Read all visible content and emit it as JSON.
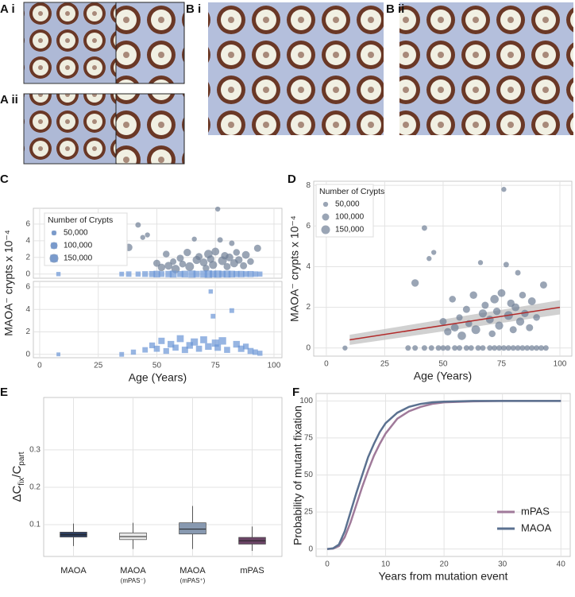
{
  "panel_labels": [
    "A i",
    "A ii",
    "B i",
    "B ii",
    "C",
    "D",
    "E",
    "F"
  ],
  "chart_data": [
    {
      "type": "scatter",
      "ylabel": "MAOA⁻ crypts x 10⁻⁴",
      "xlim": [
        -2.7,
        103.4
      ],
      "xticks": [
        0,
        25,
        50,
        75,
        100
      ],
      "show_xtick_labels": false,
      "ylim": [
        -0.5,
        7.9
      ],
      "yticks": [
        0,
        2,
        4,
        6
      ],
      "grid": true,
      "size_legend": {
        "title": "Number of Crypts",
        "entries": [
          {
            "value": 50000,
            "label": "50,000"
          },
          {
            "value": 100000,
            "label": "100,000"
          },
          {
            "value": 150000,
            "label": "150,000"
          }
        ]
      },
      "series": [
        {
          "color": "#6f7f96",
          "marker": "circle",
          "x": [
            38,
            42,
            44,
            46,
            50,
            52,
            54,
            55,
            57,
            58,
            60,
            61,
            63,
            64,
            66,
            67,
            68,
            70,
            71,
            72,
            73,
            74,
            75,
            76,
            77,
            78,
            79,
            80,
            81,
            82,
            83,
            84,
            85,
            87,
            88,
            90,
            93
          ],
          "y": [
            3.2,
            5.9,
            4.4,
            4.7,
            1.3,
            0.8,
            2.4,
            1.0,
            1.5,
            0.6,
            1.9,
            1.2,
            2.6,
            0.9,
            4.2,
            1.7,
            2.1,
            1.4,
            0.7,
            2.4,
            1.8,
            1.1,
            2.7,
            7.8,
            4.1,
            1.6,
            2.2,
            0.9,
            2.0,
            3.7,
            1.3,
            2.6,
            1.7,
            1.0,
            2.3,
            1.5,
            3.1
          ],
          "size": [
            110000,
            60000,
            50000,
            50000,
            100000,
            110000,
            90000,
            120000,
            80000,
            140000,
            100000,
            90000,
            110000,
            150000,
            50000,
            130000,
            100000,
            120000,
            90000,
            140000,
            110000,
            130000,
            120000,
            50000,
            60000,
            150000,
            110000,
            100000,
            120000,
            60000,
            130000,
            90000,
            110000,
            100000,
            120000,
            90000,
            100000
          ]
        },
        {
          "color": "#6b96d6",
          "marker": "square",
          "x": [
            8,
            35,
            38,
            42,
            45,
            48,
            50,
            52,
            55,
            57,
            60,
            62,
            65,
            67,
            70,
            72,
            74,
            76,
            78,
            80,
            82,
            84,
            86,
            88,
            90,
            92,
            94
          ],
          "y": [
            0,
            0,
            0,
            0,
            0,
            0,
            0,
            0,
            0,
            0,
            0,
            0,
            0,
            0,
            0,
            0,
            0,
            0,
            0,
            0,
            0,
            0,
            0,
            0,
            0,
            0,
            0
          ],
          "size": [
            50000,
            60000,
            80000,
            70000,
            90000,
            100000,
            120000,
            90000,
            110000,
            130000,
            100000,
            120000,
            140000,
            110000,
            130000,
            150000,
            120000,
            140000,
            110000,
            130000,
            120000,
            100000,
            110000,
            90000,
            100000,
            80000,
            70000
          ]
        }
      ]
    },
    {
      "type": "scatter",
      "xlabel": "Age (Years)",
      "xlim": [
        -2.7,
        103.4
      ],
      "xticks": [
        0,
        25,
        50,
        75,
        100
      ],
      "ylim": [
        -0.3,
        6.5
      ],
      "yticks": [
        0,
        2,
        4,
        6
      ],
      "grid": true,
      "series": [
        {
          "color": "#6b96d6",
          "marker": "square",
          "x": [
            8,
            35,
            40,
            45,
            48,
            50,
            52,
            54,
            56,
            58,
            60,
            62,
            64,
            66,
            68,
            70,
            72,
            73,
            74,
            75,
            76,
            78,
            80,
            82,
            84,
            86,
            88,
            90,
            92,
            94
          ],
          "y": [
            0,
            0,
            0.2,
            0.4,
            0.8,
            0.5,
            1.2,
            0.3,
            0.9,
            0.6,
            1.4,
            0.4,
            0.8,
            1.1,
            0.5,
            1.3,
            0.7,
            5.6,
            3.4,
            1.0,
            0.6,
            1.2,
            0.4,
            3.9,
            0.9,
            0.5,
            0.7,
            0.3,
            0.2,
            0.1
          ],
          "size": [
            40000,
            60000,
            70000,
            80000,
            90000,
            100000,
            110000,
            90000,
            120000,
            100000,
            130000,
            110000,
            120000,
            140000,
            100000,
            130000,
            120000,
            50000,
            60000,
            140000,
            110000,
            150000,
            100000,
            60000,
            120000,
            110000,
            90000,
            100000,
            80000,
            70000
          ]
        }
      ]
    },
    {
      "type": "scatter",
      "xlabel": "Age (Years)",
      "ylabel": "MAOA⁻ crypts x 10⁻⁴",
      "xlim": [
        -5.4,
        105.1
      ],
      "xticks": [
        0,
        25,
        50,
        75,
        100
      ],
      "ylim": [
        -0.4,
        8.2
      ],
      "yticks": [
        0,
        2,
        4,
        6,
        8
      ],
      "grid": true,
      "size_legend": {
        "title": "Number of Crypts",
        "entries": [
          {
            "value": 50000,
            "label": "50,000"
          },
          {
            "value": 100000,
            "label": "100,000"
          },
          {
            "value": 150000,
            "label": "150,000"
          }
        ]
      },
      "fit": {
        "color": "#b22a2a",
        "band_color": "#bdbdbd",
        "x": [
          10,
          100
        ],
        "y": [
          0.4,
          2.0
        ],
        "lower": [
          0.15,
          1.65
        ],
        "upper": [
          0.65,
          2.35
        ]
      },
      "series": [
        {
          "color": "#6f7f96",
          "marker": "circle",
          "x": [
            38,
            42,
            44,
            46,
            50,
            52,
            54,
            55,
            57,
            58,
            60,
            61,
            63,
            64,
            66,
            67,
            68,
            70,
            71,
            72,
            73,
            74,
            75,
            76,
            77,
            78,
            79,
            80,
            81,
            82,
            83,
            84,
            85,
            87,
            88,
            90,
            93,
            8,
            35,
            38,
            42,
            45,
            48,
            50,
            52,
            55,
            57,
            60,
            62,
            65,
            67,
            70,
            72,
            74,
            76,
            78,
            80,
            82,
            84,
            86,
            88,
            90,
            92,
            94
          ],
          "y": [
            3.2,
            5.9,
            4.4,
            4.7,
            1.3,
            0.8,
            2.4,
            1.0,
            1.5,
            0.6,
            1.9,
            1.2,
            2.6,
            0.9,
            4.2,
            1.7,
            2.1,
            1.4,
            0.7,
            2.4,
            1.8,
            1.1,
            2.7,
            7.8,
            4.1,
            1.6,
            2.2,
            0.9,
            2.0,
            3.7,
            1.3,
            2.6,
            1.7,
            1.0,
            2.3,
            1.5,
            3.1,
            0,
            0,
            0,
            0,
            0,
            0,
            0,
            0,
            0,
            0,
            0,
            0,
            0,
            0,
            0,
            0,
            0,
            0,
            0,
            0,
            0,
            0,
            0,
            0,
            0,
            0,
            0
          ],
          "size": [
            110000,
            60000,
            50000,
            50000,
            100000,
            110000,
            90000,
            120000,
            80000,
            140000,
            100000,
            90000,
            110000,
            150000,
            50000,
            130000,
            100000,
            120000,
            90000,
            140000,
            110000,
            130000,
            120000,
            50000,
            60000,
            150000,
            110000,
            100000,
            120000,
            60000,
            130000,
            90000,
            110000,
            100000,
            120000,
            90000,
            100000,
            50000,
            60000,
            60000,
            60000,
            60000,
            60000,
            60000,
            60000,
            60000,
            60000,
            60000,
            60000,
            60000,
            60000,
            60000,
            60000,
            60000,
            60000,
            60000,
            60000,
            60000,
            60000,
            60000,
            60000,
            60000,
            60000,
            60000
          ]
        }
      ]
    },
    {
      "type": "box",
      "ylabel_parts": [
        "ΔC",
        "fix",
        "/C",
        "part"
      ],
      "categories": [
        "MAOA",
        "MAOA",
        "MAOA",
        "mPAS"
      ],
      "sublabels": [
        null,
        "(mPAS⁻)",
        "(mPAS⁺)",
        null
      ],
      "ylim": [
        0.015,
        0.44
      ],
      "yticks": [
        0.1,
        0.2,
        0.3
      ],
      "grid": true,
      "colors": [
        "#2d3e5f",
        "#e8e8e8",
        "#8899b0",
        "#6b4566"
      ],
      "boxes": [
        {
          "min": 0.043,
          "q1": 0.067,
          "median": 0.073,
          "q3": 0.08,
          "max": 0.103
        },
        {
          "min": 0.035,
          "q1": 0.06,
          "median": 0.068,
          "q3": 0.078,
          "max": 0.105
        },
        {
          "min": 0.035,
          "q1": 0.075,
          "median": 0.088,
          "q3": 0.105,
          "max": 0.15
        },
        {
          "min": 0.03,
          "q1": 0.048,
          "median": 0.057,
          "q3": 0.066,
          "max": 0.095
        }
      ]
    },
    {
      "type": "line",
      "xlabel": "Years from mutation event",
      "ylabel": "Probability of mutant fixation",
      "xlim": [
        -1.9,
        41.6
      ],
      "xticks": [
        0,
        10,
        20,
        30,
        40
      ],
      "ylim": [
        -5,
        105
      ],
      "yticks": [
        0,
        25,
        50,
        75,
        100
      ],
      "grid": true,
      "legend": "bottom-right",
      "x": [
        0,
        1,
        2,
        3,
        4,
        5,
        6,
        7,
        8,
        9,
        10,
        12,
        14,
        16,
        18,
        20,
        25,
        30,
        35,
        40
      ],
      "series": [
        {
          "name": "mPAS",
          "color": "#a07a9a",
          "values": [
            0,
            0.3,
            2,
            8,
            18,
            30,
            42,
            53,
            63,
            71,
            78,
            88,
            93,
            96,
            98,
            99,
            99.7,
            100,
            100,
            100
          ]
        },
        {
          "name": "MAOA",
          "color": "#5b7190",
          "values": [
            0,
            0.5,
            3,
            12,
            25,
            38,
            50,
            62,
            71,
            79,
            85,
            92,
            96,
            98,
            99,
            99.5,
            100,
            100,
            100,
            100
          ]
        }
      ]
    }
  ]
}
